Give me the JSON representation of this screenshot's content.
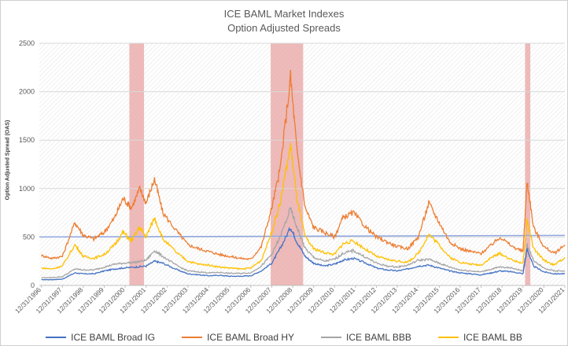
{
  "chart_data": {
    "type": "line",
    "title": "ICE BAML Market Indexes",
    "subtitle": "Option Adjusted Spreads",
    "ylabel": "Option Adjusted Spread (OAS)",
    "ylim": [
      0,
      2500
    ],
    "yticks": [
      "0",
      "500",
      "1000",
      "1500",
      "2000",
      "2500"
    ],
    "xticks": [
      "12/31/1996",
      "12/31/1997",
      "12/31/1998",
      "12/31/1999",
      "12/31/2000",
      "12/31/2001",
      "12/31/2002",
      "12/31/2003",
      "12/31/2004",
      "12/31/2005",
      "12/31/2006",
      "12/31/2007",
      "12/31/2008",
      "12/31/2009",
      "12/31/2010",
      "12/31/2011",
      "12/31/2012",
      "12/31/2013",
      "12/31/2014",
      "12/31/2015",
      "12/31/2016",
      "12/31/2017",
      "12/31/2018",
      "12/31/2019",
      "12/31/2020",
      "12/31/2021"
    ],
    "recessions": [
      [
        2001.2,
        2001.9
      ],
      [
        2007.95,
        2009.5
      ],
      [
        2020.1,
        2020.35
      ]
    ],
    "reference_line": 500,
    "series": [
      {
        "name": "ICE BAML Broad IG",
        "color": "#4472c4",
        "x": [
          1997,
          1997.5,
          1998,
          1998.6,
          1999,
          1999.5,
          2000,
          2000.5,
          2000.9,
          2001.5,
          2002,
          2002.4,
          2002.8,
          2003.5,
          2004,
          2004.5,
          2005,
          2005.5,
          2006,
          2006.5,
          2007,
          2007.5,
          2008,
          2008.4,
          2008.9,
          2009.2,
          2009.6,
          2010,
          2010.5,
          2011,
          2011.4,
          2011.9,
          2012.5,
          2013,
          2013.5,
          2014,
          2014.5,
          2015,
          2015.5,
          2016,
          2016.5,
          2017,
          2017.5,
          2018,
          2018.5,
          2018.9,
          2019.5,
          2020,
          2020.2,
          2020.5,
          2021,
          2021.5,
          2022
        ],
        "values": [
          60,
          60,
          65,
          130,
          120,
          120,
          150,
          170,
          180,
          190,
          200,
          250,
          230,
          160,
          120,
          110,
          100,
          105,
          95,
          95,
          100,
          150,
          230,
          380,
          600,
          450,
          300,
          230,
          200,
          220,
          260,
          280,
          230,
          180,
          160,
          150,
          170,
          200,
          210,
          180,
          150,
          130,
          120,
          110,
          130,
          150,
          140,
          120,
          375,
          200,
          140,
          120,
          120
        ]
      },
      {
        "name": "ICE BAML Broad HY",
        "color": "#ed7d31",
        "x": [
          1997,
          1997.5,
          1998,
          1998.6,
          1999,
          1999.5,
          2000,
          2000.5,
          2000.9,
          2001.3,
          2001.7,
          2002,
          2002.4,
          2002.8,
          2003.5,
          2004,
          2004.5,
          2005,
          2005.5,
          2006,
          2006.5,
          2007,
          2007.5,
          2008,
          2008.4,
          2008.9,
          2009.2,
          2009.6,
          2010,
          2010.5,
          2011,
          2011.4,
          2011.9,
          2012.5,
          2013,
          2013.5,
          2014,
          2014.5,
          2015,
          2015.5,
          2016,
          2016.5,
          2017,
          2017.5,
          2018,
          2018.5,
          2018.9,
          2019.5,
          2020,
          2020.2,
          2020.5,
          2021,
          2021.5,
          2022
        ],
        "values": [
          310,
          280,
          300,
          650,
          520,
          480,
          550,
          700,
          900,
          800,
          1000,
          850,
          1100,
          750,
          550,
          420,
          380,
          350,
          320,
          300,
          280,
          270,
          400,
          800,
          1200,
          2150,
          1400,
          800,
          600,
          550,
          500,
          700,
          750,
          600,
          500,
          450,
          400,
          380,
          500,
          850,
          650,
          450,
          380,
          350,
          330,
          420,
          500,
          400,
          350,
          1080,
          600,
          400,
          330,
          420
        ]
      },
      {
        "name": "ICE BAML BBB",
        "color": "#a5a5a5",
        "x": [
          1997,
          1997.5,
          1998,
          1998.6,
          1999,
          1999.5,
          2000,
          2000.5,
          2000.9,
          2001.5,
          2002,
          2002.4,
          2002.8,
          2003.5,
          2004,
          2004.5,
          2005,
          2005.5,
          2006,
          2006.5,
          2007,
          2007.5,
          2008,
          2008.4,
          2008.9,
          2009.2,
          2009.6,
          2010,
          2010.5,
          2011,
          2011.4,
          2011.9,
          2012.5,
          2013,
          2013.5,
          2014,
          2014.5,
          2015,
          2015.5,
          2016,
          2016.5,
          2017,
          2017.5,
          2018,
          2018.5,
          2018.9,
          2019.5,
          2020,
          2020.2,
          2020.5,
          2021,
          2021.5,
          2022
        ],
        "values": [
          80,
          80,
          90,
          170,
          160,
          160,
          190,
          220,
          230,
          240,
          260,
          360,
          300,
          200,
          150,
          140,
          130,
          135,
          125,
          125,
          130,
          200,
          320,
          500,
          790,
          600,
          380,
          290,
          250,
          270,
          330,
          360,
          290,
          230,
          200,
          190,
          210,
          260,
          270,
          230,
          190,
          160,
          150,
          140,
          170,
          190,
          180,
          150,
          420,
          260,
          180,
          150,
          150
        ]
      },
      {
        "name": "ICE BAML BB",
        "color": "#ffc000",
        "x": [
          1997,
          1997.5,
          1998,
          1998.6,
          1999,
          1999.5,
          2000,
          2000.5,
          2000.9,
          2001.3,
          2001.7,
          2002,
          2002.4,
          2002.8,
          2003.5,
          2004,
          2004.5,
          2005,
          2005.5,
          2006,
          2006.5,
          2007,
          2007.5,
          2008,
          2008.4,
          2008.9,
          2009.2,
          2009.6,
          2010,
          2010.5,
          2011,
          2011.4,
          2011.9,
          2012.5,
          2013,
          2013.5,
          2014,
          2014.5,
          2015,
          2015.5,
          2016,
          2016.5,
          2017,
          2017.5,
          2018,
          2018.5,
          2018.9,
          2019.5,
          2020,
          2020.2,
          2020.5,
          2021,
          2021.5,
          2022
        ],
        "values": [
          180,
          170,
          200,
          420,
          300,
          280,
          320,
          420,
          550,
          460,
          600,
          500,
          700,
          480,
          330,
          250,
          220,
          210,
          190,
          180,
          170,
          180,
          260,
          550,
          850,
          1450,
          900,
          500,
          380,
          340,
          320,
          430,
          460,
          370,
          300,
          270,
          250,
          240,
          330,
          530,
          420,
          290,
          240,
          220,
          210,
          290,
          330,
          260,
          230,
          680,
          380,
          260,
          210,
          290
        ]
      }
    ],
    "legend_position": "bottom"
  }
}
